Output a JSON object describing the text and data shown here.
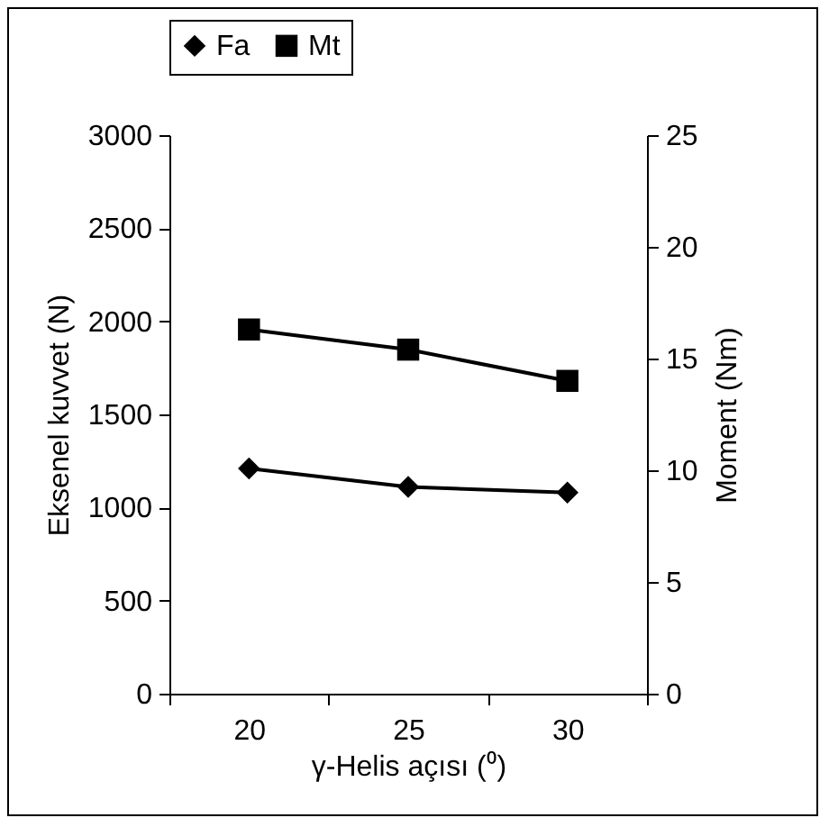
{
  "chart_data": {
    "type": "line",
    "xlabel": "γ-Helis açısı (⁰)",
    "ylabel": "Eksenel kuvvet (N)",
    "y2label": "Moment (Nm)",
    "categories": [
      "20",
      "25",
      "30"
    ],
    "series": [
      {
        "name": "Fa",
        "color": "#000000",
        "marker": "diamond",
        "values": [
          1210,
          1110,
          1080
        ]
      },
      {
        "name": "Mt",
        "color": "#000000",
        "marker": "square",
        "axis": "y2",
        "values": [
          16.3,
          15.4,
          14.0
        ]
      }
    ],
    "ylim": [
      0,
      3000
    ],
    "yticks": [
      0,
      500,
      1000,
      1500,
      2000,
      2500,
      3000
    ],
    "y2lim": [
      0,
      25
    ],
    "y2ticks": [
      0,
      5,
      10,
      15,
      20,
      25
    ],
    "grid": false,
    "legend": "top",
    "line_style": "solid"
  }
}
